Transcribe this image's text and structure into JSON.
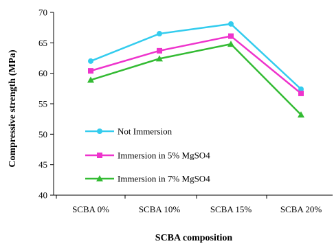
{
  "chart_data": {
    "type": "line",
    "title": "",
    "xlabel": "SCBA composition",
    "ylabel": "Compressive strength (MPa)",
    "categories": [
      "SCBA 0%",
      "SCBA 10%",
      "SCBA 15%",
      "SCBA 20%"
    ],
    "ylim": [
      40,
      70
    ],
    "yticks": [
      40,
      45,
      50,
      55,
      60,
      65,
      70
    ],
    "grid": false,
    "legend_position": "bottom-left",
    "series": [
      {
        "name": "Not Immersion",
        "color": "#33ccee",
        "marker": "circle",
        "values": [
          62.0,
          66.5,
          68.1,
          57.4
        ]
      },
      {
        "name": "Immersion in 5% MgSO4",
        "color": "#ee33cc",
        "marker": "square",
        "values": [
          60.4,
          63.7,
          66.1,
          56.7
        ]
      },
      {
        "name": "Immersion in 7% MgSO4",
        "color": "#33bb33",
        "marker": "triangle",
        "values": [
          58.9,
          62.4,
          64.8,
          53.2
        ]
      }
    ]
  }
}
